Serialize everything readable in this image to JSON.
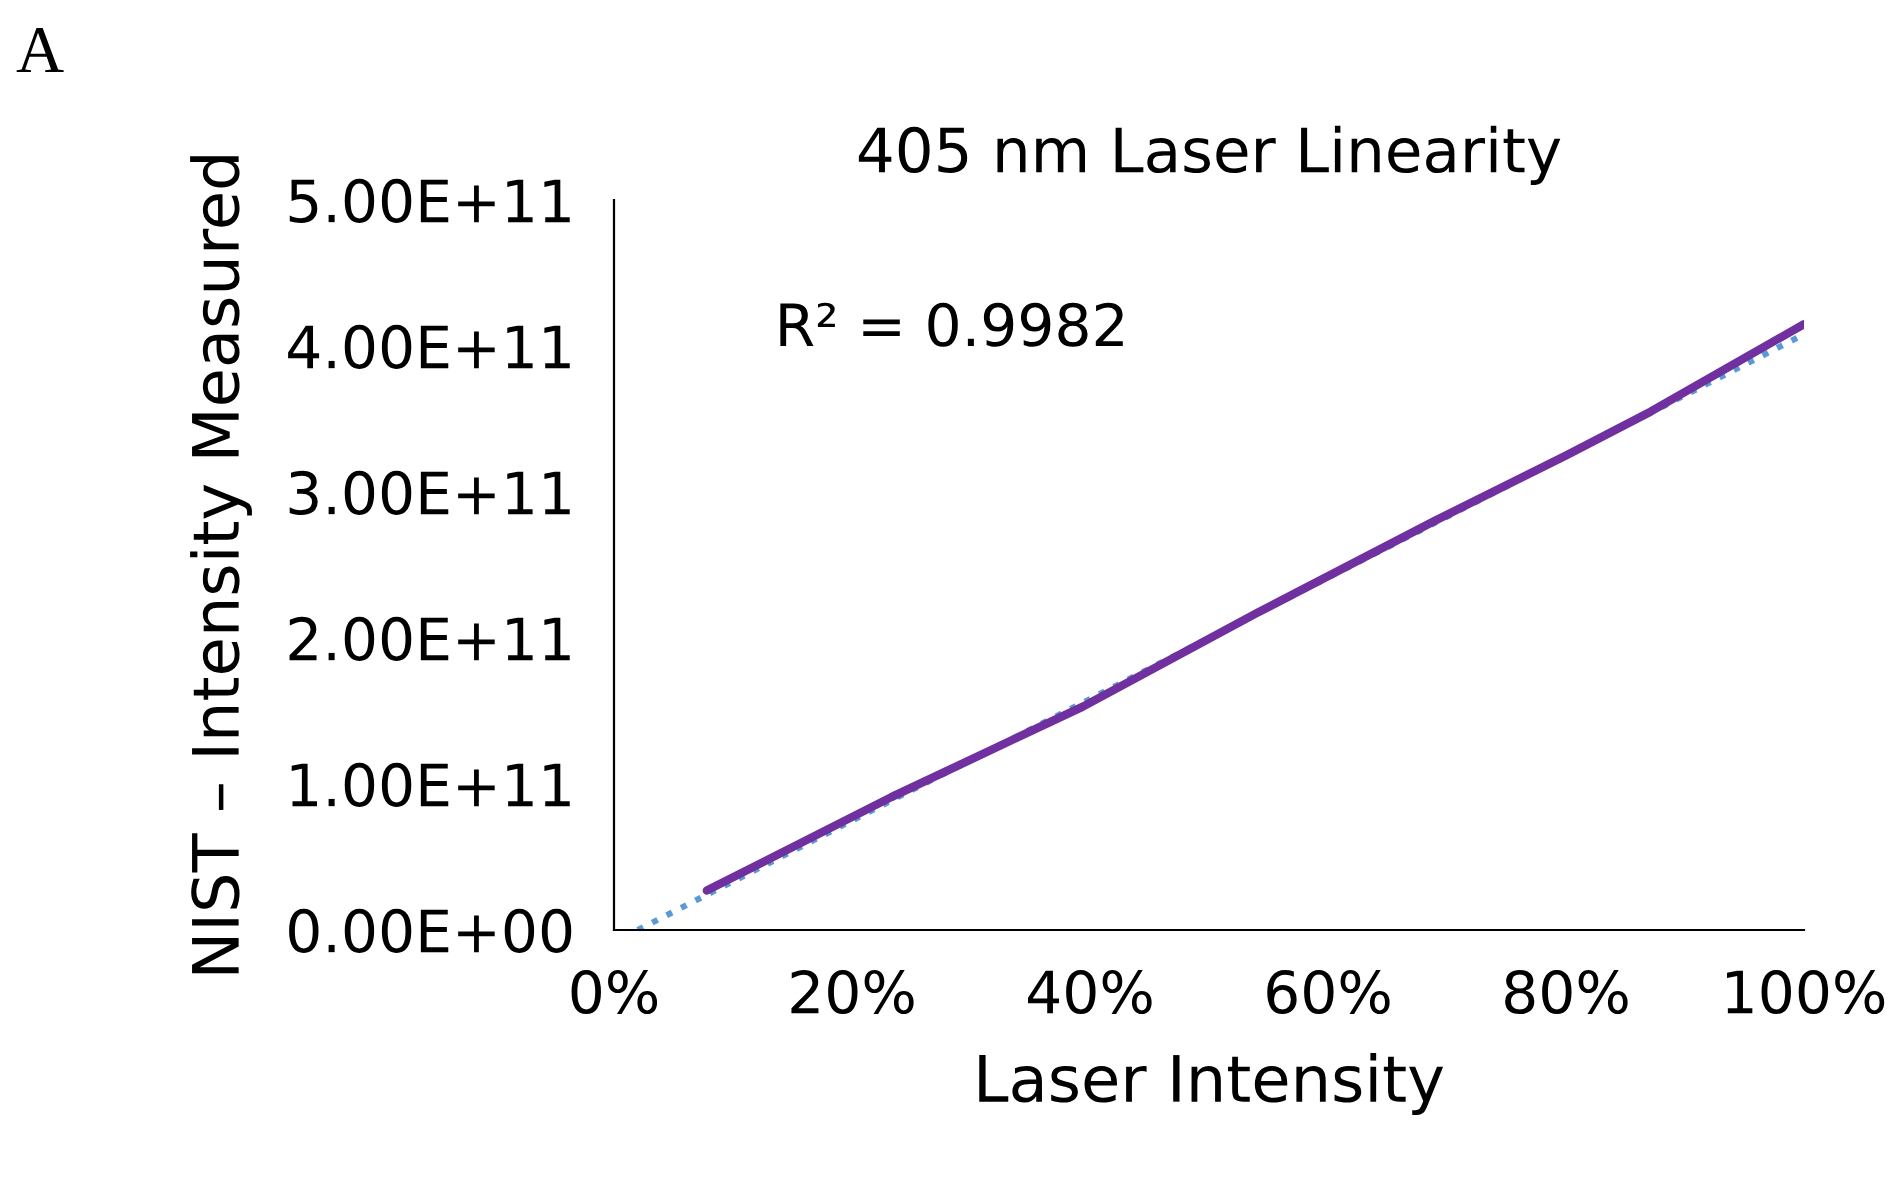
{
  "chart_data": {
    "type": "line",
    "title": "405 nm Laser Linearity",
    "xlabel": "Laser Intensity",
    "ylabel": "NIST – Intensity Measured",
    "annotations": [
      "A",
      "R² = 0.9982"
    ],
    "xlim": [
      0,
      100
    ],
    "xticks": [
      {
        "value": 0,
        "label": "0%"
      },
      {
        "value": 20,
        "label": "20%"
      },
      {
        "value": 40,
        "label": "40%"
      },
      {
        "value": 60,
        "label": "60%"
      },
      {
        "value": 80,
        "label": "80%"
      },
      {
        "value": 100,
        "label": "100%"
      }
    ],
    "ylim": [
      0,
      500000000000
    ],
    "yticks": [
      {
        "value": 0,
        "label": "0.00E+00"
      },
      {
        "value": 100000000000,
        "label": "1.00E+11"
      },
      {
        "value": 200000000000,
        "label": "2.00E+11"
      },
      {
        "value": 300000000000,
        "label": "3.00E+11"
      },
      {
        "value": 400000000000,
        "label": "4.00E+11"
      },
      {
        "value": 500000000000,
        "label": "5.00E+11"
      }
    ],
    "grid": false,
    "legend": false,
    "series": [
      {
        "color": "#7030a0",
        "line_style": "solid",
        "x": [
          7.8,
          23.3,
          39.4,
          54,
          68.9,
          80,
          87.1,
          100
        ],
        "values": [
          27000000000,
          91000000000,
          153000000000,
          217000000000,
          280000000000,
          325000000000,
          355000000000,
          415000000000
        ]
      },
      {
        "color": "#5b9bd5",
        "line_style": "dotted",
        "x": [
          2,
          100
        ],
        "values": [
          0,
          408000000000
        ]
      }
    ]
  }
}
